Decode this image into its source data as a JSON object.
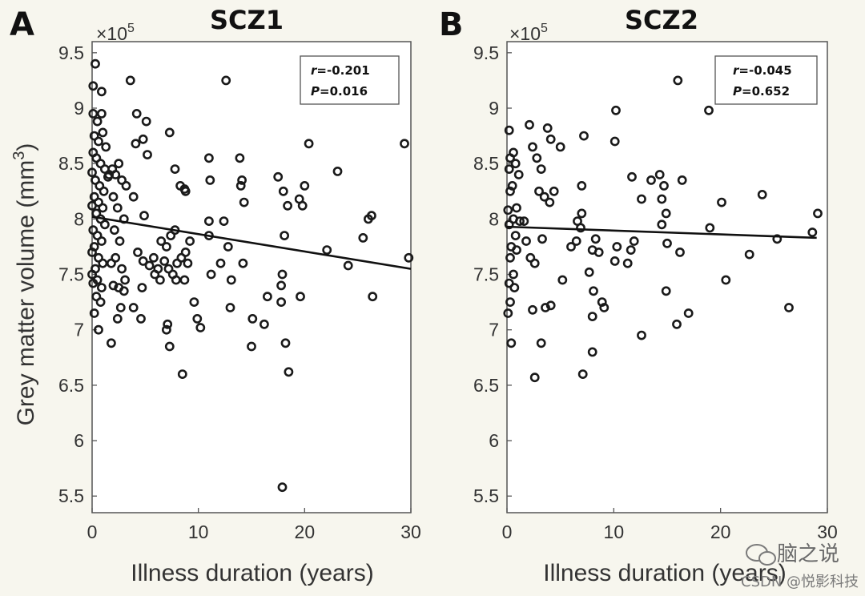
{
  "shared": {
    "ylabel_main": "Grey matter volume (mm",
    "ylabel_sup": "3",
    "ylabel_end": ")",
    "multiplier_base": "×10",
    "multiplier_exp": "5",
    "xlabel": "Illness duration (years)"
  },
  "watermark": {
    "brand": "脑之说",
    "credit": "CSDN @悦影科技"
  },
  "chart_data": [
    {
      "type": "scatter",
      "panel_letter": "A",
      "title": "SCZ1",
      "xlabel": "Illness duration (years)",
      "ylabel": "Grey matter volume (mm3) ×10^5",
      "xlim": [
        0,
        30
      ],
      "ylim": [
        5.35,
        9.6
      ],
      "xticks": [
        "0",
        "10",
        "20",
        "30"
      ],
      "yticks": [
        "5.5",
        "6",
        "6.5",
        "7",
        "7.5",
        "8",
        "8.5",
        "9",
        "9.5"
      ],
      "ytick_values": [
        5.5,
        6,
        6.5,
        7,
        7.5,
        8,
        8.5,
        9,
        9.5
      ],
      "xtick_values": [
        0,
        10,
        20,
        30
      ],
      "stats": {
        "r_label": "r",
        "r_value": "=-0.201",
        "p_label": "P",
        "p_value": "=0.016"
      },
      "fit_line": {
        "x": [
          0,
          30
        ],
        "y": [
          8.02,
          7.55
        ]
      },
      "points": [
        [
          0.3,
          9.4
        ],
        [
          0.1,
          9.2
        ],
        [
          0.9,
          9.15
        ],
        [
          0.1,
          8.95
        ],
        [
          0.5,
          8.88
        ],
        [
          0.9,
          8.95
        ],
        [
          0.2,
          8.75
        ],
        [
          0.6,
          8.7
        ],
        [
          1.0,
          8.78
        ],
        [
          1.3,
          8.65
        ],
        [
          0.1,
          8.6
        ],
        [
          0.4,
          8.55
        ],
        [
          0.8,
          8.5
        ],
        [
          1.2,
          8.45
        ],
        [
          1.6,
          8.4
        ],
        [
          0.0,
          8.42
        ],
        [
          0.3,
          8.35
        ],
        [
          0.7,
          8.3
        ],
        [
          1.1,
          8.25
        ],
        [
          1.5,
          8.38
        ],
        [
          0.2,
          8.2
        ],
        [
          0.6,
          8.15
        ],
        [
          1.0,
          8.1
        ],
        [
          0.0,
          8.12
        ],
        [
          0.4,
          8.05
        ],
        [
          0.8,
          8.0
        ],
        [
          1.2,
          7.95
        ],
        [
          0.1,
          7.9
        ],
        [
          0.5,
          7.85
        ],
        [
          0.9,
          7.8
        ],
        [
          0.2,
          7.75
        ],
        [
          0.0,
          7.7
        ],
        [
          0.6,
          7.65
        ],
        [
          1.0,
          7.6
        ],
        [
          0.3,
          7.55
        ],
        [
          0.0,
          7.5
        ],
        [
          0.5,
          7.45
        ],
        [
          0.1,
          7.42
        ],
        [
          0.9,
          7.38
        ],
        [
          0.4,
          7.3
        ],
        [
          0.8,
          7.25
        ],
        [
          0.2,
          7.15
        ],
        [
          0.6,
          7.0
        ],
        [
          1.9,
          8.45
        ],
        [
          2.2,
          8.4
        ],
        [
          2.5,
          8.5
        ],
        [
          2.8,
          8.35
        ],
        [
          3.2,
          8.3
        ],
        [
          2.0,
          8.2
        ],
        [
          2.4,
          8.1
        ],
        [
          3.0,
          8.0
        ],
        [
          2.1,
          7.9
        ],
        [
          2.6,
          7.8
        ],
        [
          1.8,
          7.6
        ],
        [
          2.2,
          7.65
        ],
        [
          2.8,
          7.55
        ],
        [
          3.1,
          7.45
        ],
        [
          2.0,
          7.4
        ],
        [
          2.5,
          7.38
        ],
        [
          3.0,
          7.35
        ],
        [
          2.7,
          7.2
        ],
        [
          2.4,
          7.1
        ],
        [
          1.8,
          6.88
        ],
        [
          3.6,
          9.25
        ],
        [
          4.2,
          8.95
        ],
        [
          5.1,
          8.88
        ],
        [
          4.8,
          8.72
        ],
        [
          4.1,
          8.68
        ],
        [
          5.2,
          8.58
        ],
        [
          3.9,
          8.2
        ],
        [
          4.9,
          8.03
        ],
        [
          4.3,
          7.7
        ],
        [
          4.8,
          7.62
        ],
        [
          5.4,
          7.58
        ],
        [
          5.8,
          7.65
        ],
        [
          6.2,
          7.55
        ],
        [
          5.9,
          7.5
        ],
        [
          4.7,
          7.38
        ],
        [
          3.9,
          7.2
        ],
        [
          4.6,
          7.1
        ],
        [
          6.5,
          7.8
        ],
        [
          7.0,
          7.75
        ],
        [
          7.4,
          7.85
        ],
        [
          7.8,
          7.9
        ],
        [
          6.8,
          7.62
        ],
        [
          7.2,
          7.55
        ],
        [
          7.6,
          7.5
        ],
        [
          8.0,
          7.6
        ],
        [
          8.4,
          7.65
        ],
        [
          8.8,
          7.7
        ],
        [
          9.2,
          7.8
        ],
        [
          7.9,
          7.45
        ],
        [
          8.7,
          7.45
        ],
        [
          6.4,
          7.45
        ],
        [
          7.1,
          7.05
        ],
        [
          7.0,
          7.0
        ],
        [
          7.3,
          6.85
        ],
        [
          8.5,
          6.6
        ],
        [
          7.3,
          8.78
        ],
        [
          7.8,
          8.45
        ],
        [
          8.3,
          8.3
        ],
        [
          8.7,
          8.27
        ],
        [
          8.8,
          8.25
        ],
        [
          9.0,
          7.6
        ],
        [
          9.6,
          7.25
        ],
        [
          9.9,
          7.1
        ],
        [
          10.2,
          7.02
        ],
        [
          11.0,
          8.55
        ],
        [
          11.1,
          8.35
        ],
        [
          11.0,
          7.98
        ],
        [
          11.0,
          7.85
        ],
        [
          11.2,
          7.5
        ],
        [
          12.1,
          7.6
        ],
        [
          12.6,
          9.25
        ],
        [
          12.4,
          7.98
        ],
        [
          12.8,
          7.75
        ],
        [
          13.1,
          7.45
        ],
        [
          13.0,
          7.2
        ],
        [
          13.9,
          8.55
        ],
        [
          14.1,
          8.35
        ],
        [
          14.0,
          8.3
        ],
        [
          14.3,
          8.15
        ],
        [
          14.2,
          7.6
        ],
        [
          15.0,
          6.85
        ],
        [
          15.1,
          7.1
        ],
        [
          16.2,
          7.05
        ],
        [
          16.5,
          7.3
        ],
        [
          17.5,
          8.38
        ],
        [
          18.0,
          8.25
        ],
        [
          18.4,
          8.12
        ],
        [
          18.1,
          7.85
        ],
        [
          17.9,
          7.5
        ],
        [
          17.8,
          7.4
        ],
        [
          17.8,
          7.25
        ],
        [
          18.2,
          6.88
        ],
        [
          18.5,
          6.62
        ],
        [
          19.5,
          8.18
        ],
        [
          19.8,
          8.12
        ],
        [
          20.0,
          8.3
        ],
        [
          20.4,
          8.68
        ],
        [
          19.6,
          7.3
        ],
        [
          22.1,
          7.72
        ],
        [
          23.1,
          8.43
        ],
        [
          24.1,
          7.58
        ],
        [
          25.5,
          7.83
        ],
        [
          26.0,
          8.0
        ],
        [
          26.3,
          8.03
        ],
        [
          26.4,
          7.3
        ],
        [
          29.4,
          8.68
        ],
        [
          29.8,
          7.65
        ],
        [
          17.9,
          5.58
        ]
      ]
    },
    {
      "type": "scatter",
      "panel_letter": "B",
      "title": "SCZ2",
      "xlabel": "Illness duration (years)",
      "ylabel": "Grey matter volume (mm3) ×10^5",
      "xlim": [
        0,
        30
      ],
      "ylim": [
        5.35,
        9.6
      ],
      "xticks": [
        "0",
        "10",
        "20",
        "30"
      ],
      "yticks": [
        "5.5",
        "6",
        "6.5",
        "7",
        "7.5",
        "8",
        "8.5",
        "9",
        "9.5"
      ],
      "ytick_values": [
        5.5,
        6,
        6.5,
        7,
        7.5,
        8,
        8.5,
        9,
        9.5
      ],
      "xtick_values": [
        0,
        10,
        20,
        30
      ],
      "stats": {
        "r_label": "r",
        "r_value": "=-0.045",
        "p_label": "P",
        "p_value": "=0.652"
      },
      "fit_line": {
        "x": [
          0,
          29
        ],
        "y": [
          7.93,
          7.83
        ]
      },
      "points": [
        [
          0.2,
          8.8
        ],
        [
          0.6,
          8.6
        ],
        [
          0.3,
          8.55
        ],
        [
          0.8,
          8.5
        ],
        [
          0.2,
          8.45
        ],
        [
          1.1,
          8.4
        ],
        [
          0.5,
          8.3
        ],
        [
          0.3,
          8.25
        ],
        [
          0.9,
          8.1
        ],
        [
          0.1,
          8.08
        ],
        [
          0.6,
          8.0
        ],
        [
          1.2,
          7.98
        ],
        [
          0.2,
          7.95
        ],
        [
          0.8,
          7.85
        ],
        [
          0.4,
          7.75
        ],
        [
          0.9,
          7.72
        ],
        [
          0.3,
          7.65
        ],
        [
          0.6,
          7.5
        ],
        [
          0.2,
          7.42
        ],
        [
          0.7,
          7.38
        ],
        [
          0.3,
          7.25
        ],
        [
          0.1,
          7.15
        ],
        [
          0.4,
          6.88
        ],
        [
          1.6,
          7.98
        ],
        [
          1.8,
          7.8
        ],
        [
          2.2,
          7.65
        ],
        [
          2.1,
          8.85
        ],
        [
          2.4,
          8.65
        ],
        [
          2.8,
          8.55
        ],
        [
          3.2,
          8.45
        ],
        [
          3.0,
          8.25
        ],
        [
          3.5,
          8.2
        ],
        [
          4.0,
          8.15
        ],
        [
          4.4,
          8.25
        ],
        [
          3.8,
          8.82
        ],
        [
          4.1,
          8.72
        ],
        [
          3.3,
          7.82
        ],
        [
          2.6,
          7.6
        ],
        [
          2.4,
          7.18
        ],
        [
          3.6,
          7.2
        ],
        [
          4.1,
          7.22
        ],
        [
          3.2,
          6.88
        ],
        [
          2.6,
          6.57
        ],
        [
          5.0,
          8.65
        ],
        [
          5.2,
          7.45
        ],
        [
          6.0,
          7.75
        ],
        [
          6.5,
          7.8
        ],
        [
          6.6,
          7.98
        ],
        [
          7.0,
          8.05
        ],
        [
          6.9,
          7.92
        ],
        [
          7.2,
          8.75
        ],
        [
          7.0,
          8.3
        ],
        [
          8.3,
          7.82
        ],
        [
          8.0,
          7.72
        ],
        [
          8.6,
          7.7
        ],
        [
          7.7,
          7.52
        ],
        [
          8.1,
          7.35
        ],
        [
          8.9,
          7.25
        ],
        [
          9.1,
          7.2
        ],
        [
          8.0,
          7.12
        ],
        [
          8.0,
          6.8
        ],
        [
          7.1,
          6.6
        ],
        [
          10.2,
          8.98
        ],
        [
          10.1,
          8.7
        ],
        [
          10.3,
          7.75
        ],
        [
          10.1,
          7.62
        ],
        [
          11.3,
          7.6
        ],
        [
          11.6,
          7.72
        ],
        [
          11.9,
          7.8
        ],
        [
          11.7,
          8.38
        ],
        [
          12.6,
          6.95
        ],
        [
          12.6,
          8.18
        ],
        [
          13.5,
          8.35
        ],
        [
          14.3,
          8.4
        ],
        [
          14.5,
          8.18
        ],
        [
          14.7,
          8.3
        ],
        [
          14.9,
          8.05
        ],
        [
          14.5,
          7.95
        ],
        [
          15.0,
          7.78
        ],
        [
          14.9,
          7.35
        ],
        [
          15.9,
          7.05
        ],
        [
          16.0,
          9.25
        ],
        [
          16.4,
          8.35
        ],
        [
          16.2,
          7.7
        ],
        [
          17.0,
          7.15
        ],
        [
          18.9,
          8.98
        ],
        [
          19.0,
          7.92
        ],
        [
          20.1,
          8.15
        ],
        [
          20.5,
          7.45
        ],
        [
          22.7,
          7.68
        ],
        [
          23.9,
          8.22
        ],
        [
          25.3,
          7.82
        ],
        [
          26.4,
          7.2
        ],
        [
          28.6,
          7.88
        ],
        [
          29.1,
          8.05
        ]
      ]
    }
  ]
}
